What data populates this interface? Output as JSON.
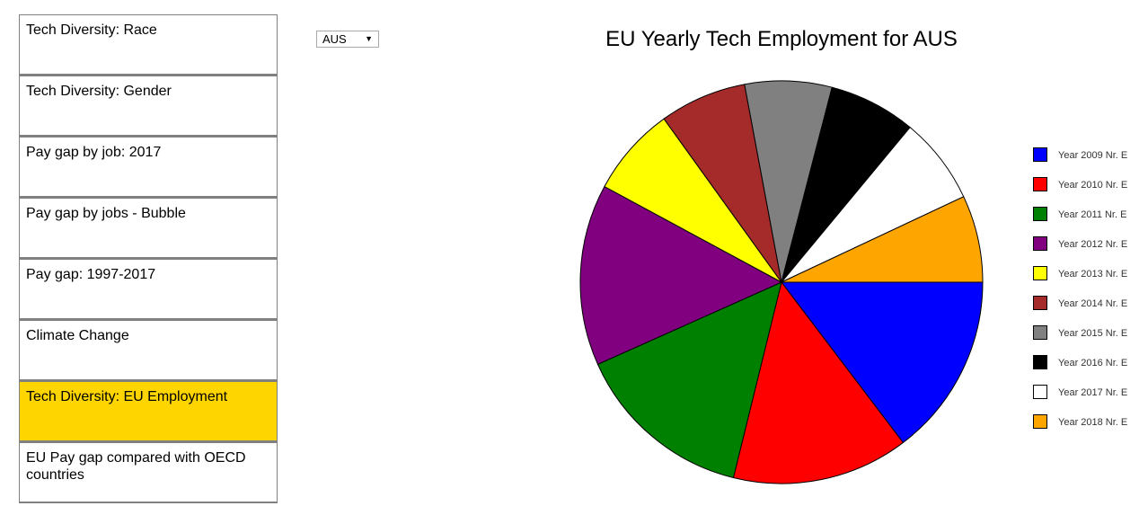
{
  "nav": {
    "items": [
      {
        "label": "Tech Diversity: Race",
        "active": false
      },
      {
        "label": "Tech Diversity: Gender",
        "active": false
      },
      {
        "label": "Pay gap by job: 2017",
        "active": false
      },
      {
        "label": "Pay gap by jobs - Bubble",
        "active": false
      },
      {
        "label": "Pay gap: 1997-2017",
        "active": false
      },
      {
        "label": "Climate Change",
        "active": false
      },
      {
        "label": "Tech Diversity: EU Employment",
        "active": true
      },
      {
        "label": "EU Pay gap compared with OECD countries",
        "active": false
      }
    ]
  },
  "country_select": {
    "value": "AUS",
    "arrow": "▼"
  },
  "chart_data": {
    "type": "pie",
    "title": "EU Yearly Tech Employment for AUS",
    "slices": [
      {
        "label": "Year 2009 Nr. E",
        "value": 14.7,
        "color": "#0000ff"
      },
      {
        "label": "Year 2010 Nr. E",
        "value": 14.2,
        "color": "#ff0000"
      },
      {
        "label": "Year 2011 Nr. E",
        "value": 14.5,
        "color": "#008000"
      },
      {
        "label": "Year 2012 Nr. E",
        "value": 14.6,
        "color": "#800080"
      },
      {
        "label": "Year 2013 Nr. E",
        "value": 7.2,
        "color": "#ffff00"
      },
      {
        "label": "Year 2014 Nr. E",
        "value": 7.0,
        "color": "#a52a2a"
      },
      {
        "label": "Year 2015 Nr. E",
        "value": 7.0,
        "color": "#808080"
      },
      {
        "label": "Year 2016 Nr. E",
        "value": 7.0,
        "color": "#000000"
      },
      {
        "label": "Year 2017 Nr. E",
        "value": 7.0,
        "color": "#ffffff"
      },
      {
        "label": "Year 2018 Nr. E",
        "value": 7.0,
        "color": "#ffa500"
      }
    ],
    "legend_position": "right"
  }
}
